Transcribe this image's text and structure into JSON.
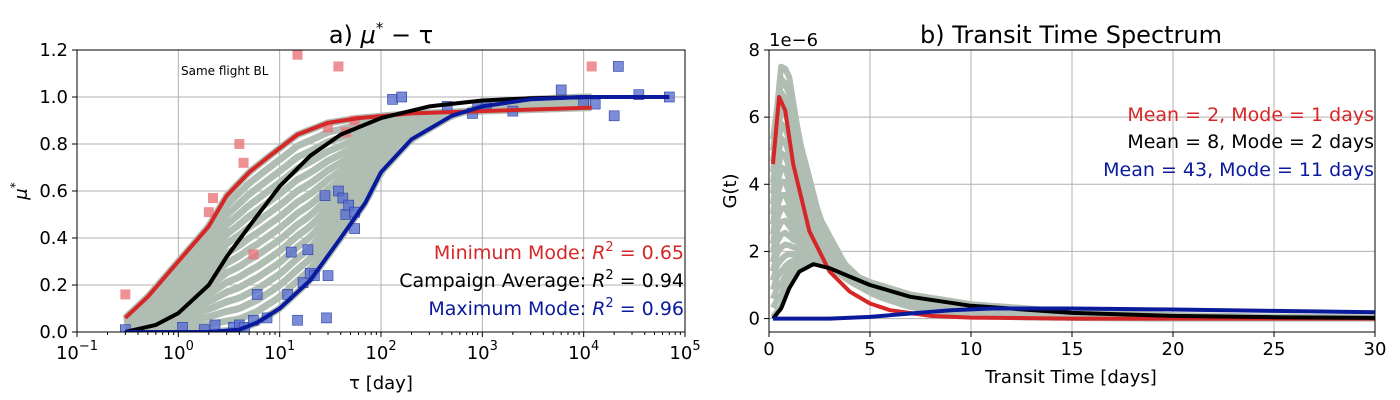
{
  "chart_data": [
    {
      "type": "scatter",
      "title": "a) μ* − τ",
      "title_main": "a) ",
      "title_math": "μ",
      "title_sup": "*",
      "title_rest": " − τ",
      "xlabel": "τ [day]",
      "ylabel": "μ",
      "ylabel_sup": "*",
      "xscale": "log",
      "xlim": [
        0.1,
        100000
      ],
      "ylim": [
        0,
        1.2
      ],
      "grid": true,
      "xticks": [
        {
          "value": 0.1,
          "base": "10",
          "exp": "−1"
        },
        {
          "value": 1,
          "base": "10",
          "exp": "0"
        },
        {
          "value": 10,
          "base": "10",
          "exp": "1"
        },
        {
          "value": 100,
          "base": "10",
          "exp": "2"
        },
        {
          "value": 1000,
          "base": "10",
          "exp": "3"
        },
        {
          "value": 10000,
          "base": "10",
          "exp": "4"
        },
        {
          "value": 100000,
          "base": "10",
          "exp": "5"
        }
      ],
      "yticks": [
        {
          "value": 0,
          "label": "0.0"
        },
        {
          "value": 0.2,
          "label": "0.2"
        },
        {
          "value": 0.4,
          "label": "0.4"
        },
        {
          "value": 0.6,
          "label": "0.6"
        },
        {
          "value": 0.8,
          "label": "0.8"
        },
        {
          "value": 1.0,
          "label": "1.0"
        },
        {
          "value": 1.2,
          "label": "1.2"
        }
      ],
      "annotation": "Same flight BL",
      "colors": {
        "red": "#d62728",
        "black": "#000000",
        "blue": "#0a1a9c",
        "ensemble": "#b0bdb3",
        "red_marker": "#e8757a",
        "blue_marker": "#5a6fd0"
      },
      "red_points": [
        {
          "x": 0.3,
          "y": 0.16
        },
        {
          "x": 2.0,
          "y": 0.51
        },
        {
          "x": 2.2,
          "y": 0.57
        },
        {
          "x": 4.0,
          "y": 0.8
        },
        {
          "x": 4.4,
          "y": 0.72
        },
        {
          "x": 5.5,
          "y": 0.33
        },
        {
          "x": 15.0,
          "y": 1.18
        },
        {
          "x": 30.0,
          "y": 0.87
        },
        {
          "x": 38.0,
          "y": 1.13
        },
        {
          "x": 45.0,
          "y": 0.85
        },
        {
          "x": 55.0,
          "y": 0.9
        },
        {
          "x": 12000,
          "y": 1.13
        }
      ],
      "blue_points": [
        {
          "x": 0.3,
          "y": 0.01
        },
        {
          "x": 1.1,
          "y": 0.02
        },
        {
          "x": 1.8,
          "y": 0.01
        },
        {
          "x": 2.3,
          "y": 0.03
        },
        {
          "x": 3.5,
          "y": 0.02
        },
        {
          "x": 4.0,
          "y": 0.03
        },
        {
          "x": 4.5,
          "y": 0.02
        },
        {
          "x": 5.5,
          "y": 0.05
        },
        {
          "x": 6.0,
          "y": 0.16
        },
        {
          "x": 7.5,
          "y": 0.06
        },
        {
          "x": 12.0,
          "y": 0.16
        },
        {
          "x": 13.0,
          "y": 0.34
        },
        {
          "x": 15.0,
          "y": 0.05
        },
        {
          "x": 17.0,
          "y": 0.21
        },
        {
          "x": 19.0,
          "y": 0.35
        },
        {
          "x": 20.0,
          "y": 0.25
        },
        {
          "x": 22.0,
          "y": 0.24
        },
        {
          "x": 28.0,
          "y": 0.58
        },
        {
          "x": 29.0,
          "y": 0.06
        },
        {
          "x": 30.0,
          "y": 0.24
        },
        {
          "x": 38.0,
          "y": 0.6
        },
        {
          "x": 42.0,
          "y": 0.57
        },
        {
          "x": 45.0,
          "y": 0.5
        },
        {
          "x": 48.0,
          "y": 0.54
        },
        {
          "x": 55.0,
          "y": 0.44
        },
        {
          "x": 55.0,
          "y": 0.51
        },
        {
          "x": 130.0,
          "y": 0.99
        },
        {
          "x": 160.0,
          "y": 1.0
        },
        {
          "x": 450.0,
          "y": 0.96
        },
        {
          "x": 800.0,
          "y": 0.93
        },
        {
          "x": 900.0,
          "y": 0.96
        },
        {
          "x": 1100.0,
          "y": 0.97
        },
        {
          "x": 2000.0,
          "y": 0.94
        },
        {
          "x": 6000.0,
          "y": 1.03
        },
        {
          "x": 10000.0,
          "y": 0.98
        },
        {
          "x": 13000.0,
          "y": 0.97
        },
        {
          "x": 20000.0,
          "y": 0.92
        },
        {
          "x": 22000.0,
          "y": 1.13
        },
        {
          "x": 35000.0,
          "y": 1.01
        },
        {
          "x": 70000.0,
          "y": 1.0
        }
      ],
      "series": [
        {
          "name": "Minimum Mode",
          "color": "#d62728",
          "points": [
            {
              "x": 0.3,
              "y": 0.06
            },
            {
              "x": 0.5,
              "y": 0.15
            },
            {
              "x": 1.0,
              "y": 0.3
            },
            {
              "x": 2.0,
              "y": 0.45
            },
            {
              "x": 3.0,
              "y": 0.58
            },
            {
              "x": 5.0,
              "y": 0.68
            },
            {
              "x": 8.0,
              "y": 0.75
            },
            {
              "x": 15.0,
              "y": 0.84
            },
            {
              "x": 30.0,
              "y": 0.89
            },
            {
              "x": 60.0,
              "y": 0.91
            },
            {
              "x": 200.0,
              "y": 0.93
            },
            {
              "x": 1000.0,
              "y": 0.94
            },
            {
              "x": 12000.0,
              "y": 0.955
            }
          ]
        },
        {
          "name": "Campaign Average",
          "color": "#000000",
          "points": [
            {
              "x": 0.3,
              "y": 0.0
            },
            {
              "x": 0.6,
              "y": 0.03
            },
            {
              "x": 1.0,
              "y": 0.08
            },
            {
              "x": 2.0,
              "y": 0.2
            },
            {
              "x": 3.0,
              "y": 0.32
            },
            {
              "x": 5.0,
              "y": 0.45
            },
            {
              "x": 10.0,
              "y": 0.62
            },
            {
              "x": 20.0,
              "y": 0.75
            },
            {
              "x": 40.0,
              "y": 0.84
            },
            {
              "x": 100.0,
              "y": 0.91
            },
            {
              "x": 300.0,
              "y": 0.96
            },
            {
              "x": 1000.0,
              "y": 0.985
            },
            {
              "x": 3000.0,
              "y": 0.995
            },
            {
              "x": 12000.0,
              "y": 1.0
            }
          ]
        },
        {
          "name": "Maximum Mode",
          "color": "#0a1a9c",
          "points": [
            {
              "x": 0.3,
              "y": 0.0
            },
            {
              "x": 2.0,
              "y": 0.0
            },
            {
              "x": 4.0,
              "y": 0.01
            },
            {
              "x": 6.0,
              "y": 0.04
            },
            {
              "x": 10.0,
              "y": 0.1
            },
            {
              "x": 20.0,
              "y": 0.22
            },
            {
              "x": 40.0,
              "y": 0.4
            },
            {
              "x": 70.0,
              "y": 0.55
            },
            {
              "x": 100.0,
              "y": 0.68
            },
            {
              "x": 200.0,
              "y": 0.82
            },
            {
              "x": 500.0,
              "y": 0.92
            },
            {
              "x": 1000.0,
              "y": 0.96
            },
            {
              "x": 3000.0,
              "y": 0.99
            },
            {
              "x": 10000.0,
              "y": 1.0
            },
            {
              "x": 70000.0,
              "y": 1.0
            }
          ]
        }
      ],
      "legend": [
        {
          "prefix": "Minimum Mode: ",
          "var": "R",
          "sup": "2",
          "suffix": " = 0.65",
          "color": "#d62728"
        },
        {
          "prefix": "Campaign Average: ",
          "var": "R",
          "sup": "2",
          "suffix": " = 0.94",
          "color": "#000000"
        },
        {
          "prefix": "Maximum Mode: ",
          "var": "R",
          "sup": "2",
          "suffix": " = 0.96",
          "color": "#0a1a9c"
        }
      ]
    },
    {
      "type": "line",
      "title": "b) Transit Time Spectrum",
      "xlabel": "Transit Time [days]",
      "ylabel": "G(t)",
      "offset_label": "1e−6",
      "xlim": [
        0,
        30
      ],
      "ylim": [
        -0.4,
        8
      ],
      "grid": true,
      "xticks": [
        {
          "value": 0,
          "label": "0"
        },
        {
          "value": 5,
          "label": "5"
        },
        {
          "value": 10,
          "label": "10"
        },
        {
          "value": 15,
          "label": "15"
        },
        {
          "value": 20,
          "label": "20"
        },
        {
          "value": 25,
          "label": "25"
        },
        {
          "value": 30,
          "label": "30"
        }
      ],
      "yticks": [
        {
          "value": 0,
          "label": "0"
        },
        {
          "value": 2,
          "label": "2"
        },
        {
          "value": 4,
          "label": "4"
        },
        {
          "value": 6,
          "label": "6"
        },
        {
          "value": 8,
          "label": "8"
        }
      ],
      "series": [
        {
          "name": "Mean = 2, Mode = 1 days",
          "color": "#d62728",
          "points": [
            {
              "x": 0.2,
              "y": 4.6
            },
            {
              "x": 0.5,
              "y": 6.6
            },
            {
              "x": 0.8,
              "y": 6.2
            },
            {
              "x": 1.2,
              "y": 4.6
            },
            {
              "x": 2.0,
              "y": 2.6
            },
            {
              "x": 3.0,
              "y": 1.4
            },
            {
              "x": 4.0,
              "y": 0.8
            },
            {
              "x": 5.0,
              "y": 0.45
            },
            {
              "x": 6.0,
              "y": 0.25
            },
            {
              "x": 8.0,
              "y": 0.08
            },
            {
              "x": 10.0,
              "y": 0.03
            },
            {
              "x": 15.0,
              "y": 0.0
            },
            {
              "x": 30.0,
              "y": 0.0
            }
          ]
        },
        {
          "name": "Mean = 8, Mode = 2 days",
          "color": "#000000",
          "points": [
            {
              "x": 0.2,
              "y": 0.0
            },
            {
              "x": 0.6,
              "y": 0.3
            },
            {
              "x": 1.0,
              "y": 0.9
            },
            {
              "x": 1.5,
              "y": 1.4
            },
            {
              "x": 2.2,
              "y": 1.62
            },
            {
              "x": 3.0,
              "y": 1.5
            },
            {
              "x": 4.0,
              "y": 1.25
            },
            {
              "x": 5.0,
              "y": 1.0
            },
            {
              "x": 7.0,
              "y": 0.65
            },
            {
              "x": 10.0,
              "y": 0.38
            },
            {
              "x": 15.0,
              "y": 0.17
            },
            {
              "x": 20.0,
              "y": 0.08
            },
            {
              "x": 25.0,
              "y": 0.04
            },
            {
              "x": 30.0,
              "y": 0.02
            }
          ]
        },
        {
          "name": "Mean = 43, Mode = 11 days",
          "color": "#0a1a9c",
          "points": [
            {
              "x": 0.2,
              "y": 0.0
            },
            {
              "x": 3.0,
              "y": 0.0
            },
            {
              "x": 5.0,
              "y": 0.05
            },
            {
              "x": 7.0,
              "y": 0.15
            },
            {
              "x": 9.0,
              "y": 0.25
            },
            {
              "x": 11.0,
              "y": 0.3
            },
            {
              "x": 15.0,
              "y": 0.3
            },
            {
              "x": 20.0,
              "y": 0.27
            },
            {
              "x": 25.0,
              "y": 0.23
            },
            {
              "x": 30.0,
              "y": 0.19
            }
          ]
        }
      ],
      "legend": [
        {
          "text": "Mean = 2, Mode = 1 days",
          "color": "#d62728"
        },
        {
          "text": "Mean = 8, Mode = 2 days",
          "color": "#000000"
        },
        {
          "text": "Mean = 43, Mode = 11 days",
          "color": "#0a1a9c"
        }
      ]
    }
  ]
}
